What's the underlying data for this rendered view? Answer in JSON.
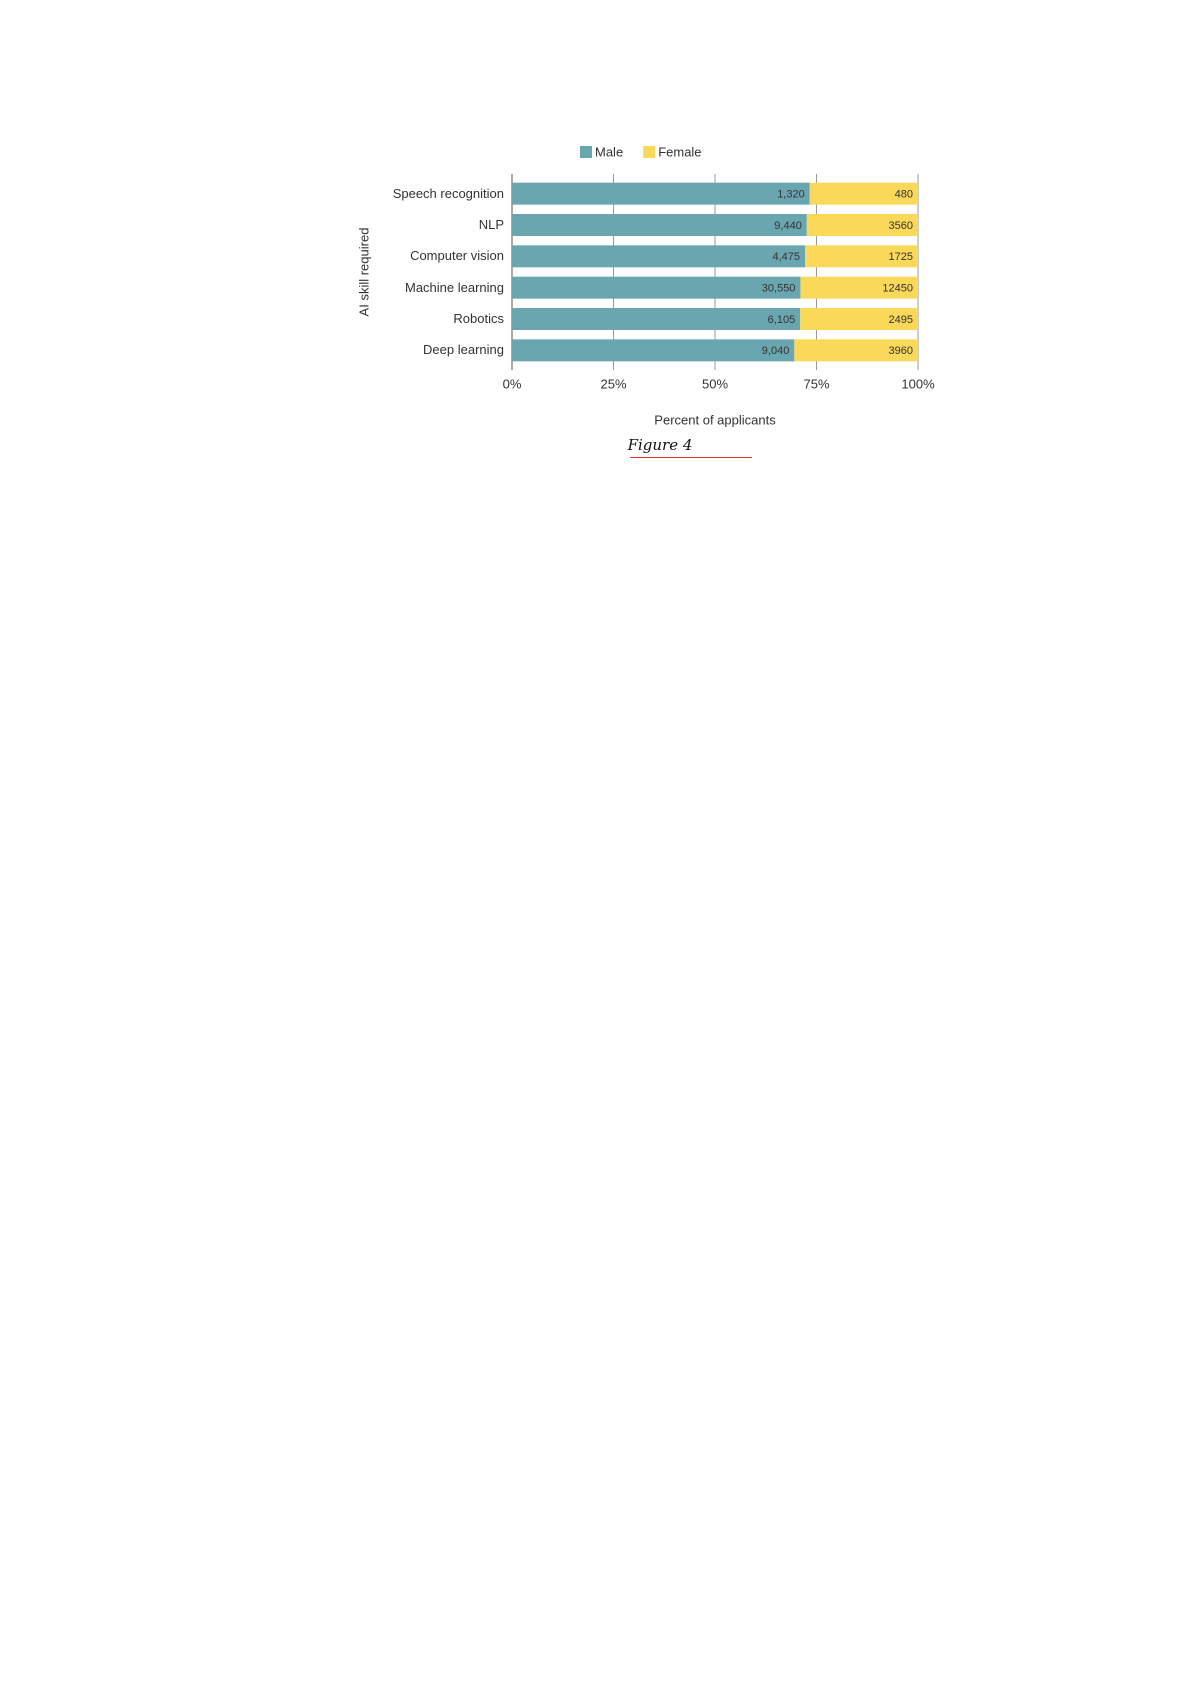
{
  "chart_data": {
    "type": "bar",
    "stacking": "percent",
    "orientation": "horizontal",
    "categories": [
      "Speech recognition",
      "NLP",
      "Computer vision",
      "Machine learning",
      "Robotics",
      "Deep learning"
    ],
    "series": [
      {
        "name": "Male",
        "color": "#6aa6b0",
        "values": [
          1320,
          9440,
          4475,
          30550,
          6105,
          9040
        ],
        "value_labels": [
          "1,320",
          "9,440",
          "4,475",
          "30,550",
          "6,105",
          "9,040"
        ]
      },
      {
        "name": "Female",
        "color": "#fad85a",
        "values": [
          480,
          3560,
          1725,
          12450,
          2495,
          3960
        ]
      }
    ],
    "xlim": [
      0,
      100
    ],
    "xticks": [
      {
        "value": 0,
        "label": "0%"
      },
      {
        "value": 25,
        "label": "25%"
      },
      {
        "value": 50,
        "label": "50%"
      },
      {
        "value": 75,
        "label": "75%"
      },
      {
        "value": 100,
        "label": "100%"
      }
    ],
    "grid": true,
    "x_label": "Percent of applicants",
    "y_label": "AI skill required",
    "legend": "top",
    "caption": "Figure 4"
  }
}
